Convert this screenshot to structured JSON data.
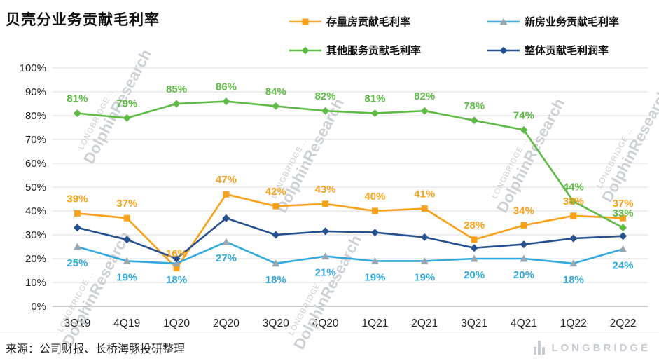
{
  "title": "贝壳分业务贡献毛利率",
  "source_note": "来源：公司财报、长桥海豚投研整理",
  "watermark": {
    "big": "DolphinResearch",
    "small": "LONGBRIDGE .."
  },
  "logo_text": "LONGBRIDGE",
  "chart_data": {
    "type": "line",
    "title": "贝壳分业务贡献毛利率",
    "categories": [
      "3Q19",
      "4Q19",
      "1Q20",
      "2Q20",
      "3Q20",
      "4Q20",
      "1Q21",
      "2Q21",
      "3Q21",
      "4Q21",
      "1Q22",
      "2Q22"
    ],
    "ylim": [
      0,
      100
    ],
    "ytick_step": 10,
    "ytick_format": "percent",
    "grid": true,
    "legend_position": "top",
    "series": [
      {
        "name": "存量房贡献毛利率",
        "color": "#F9A11B",
        "marker": "square",
        "label_position": "above",
        "values": [
          39,
          37,
          16,
          47,
          42,
          43,
          40,
          41,
          28,
          34,
          38,
          37
        ]
      },
      {
        "name": "新房业务贡献毛利率",
        "color": "#33A9DC",
        "marker": "triangle",
        "marker_color": "#9BA7B0",
        "label_position": "below",
        "values": [
          25,
          19,
          18,
          27,
          18,
          21,
          19,
          19,
          20,
          20,
          18,
          24
        ]
      },
      {
        "name": "其他服务贡献毛利率",
        "color": "#5FBB46",
        "marker": "diamond",
        "label_position": "above",
        "values": [
          81,
          79,
          85,
          86,
          84,
          82,
          81,
          82,
          78,
          74,
          44,
          33
        ]
      },
      {
        "name": "整体贡献毛利润率",
        "color": "#27508F",
        "marker": "diamond",
        "label_position": "none",
        "values": [
          33,
          28,
          20,
          37,
          30,
          31.5,
          31,
          29,
          24.5,
          26,
          28.5,
          29.5
        ]
      }
    ]
  }
}
